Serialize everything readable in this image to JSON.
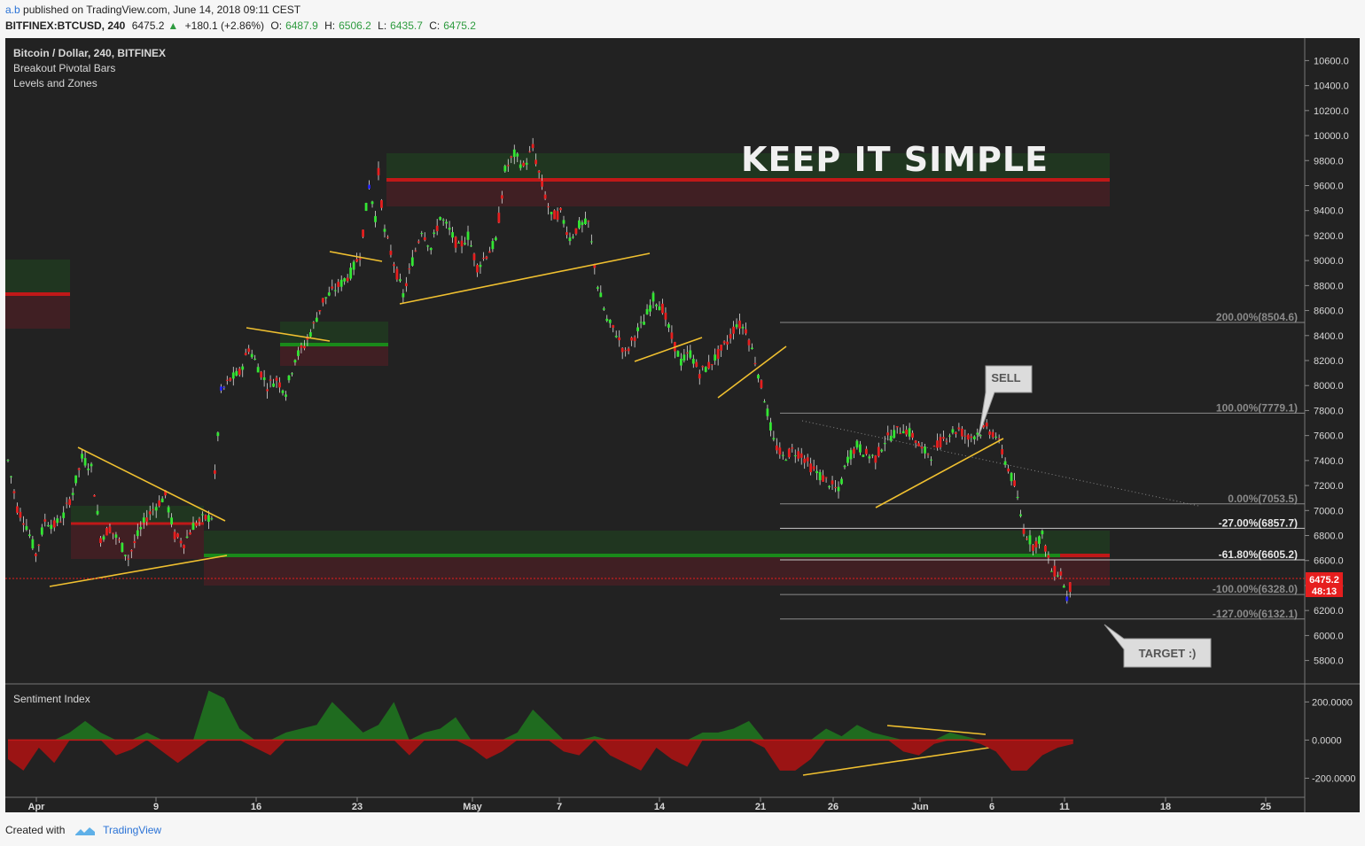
{
  "header": {
    "user": "a.b",
    "published": "published on TradingView.com, June 14, 2018 09:11 CEST",
    "symbol": "BITFINEX:BTCUSD, 240",
    "last": "6475.2",
    "change": "+180.1 (+2.86%)",
    "o_label": "O:",
    "o": "6487.9",
    "h_label": "H:",
    "h": "6506.2",
    "l_label": "L:",
    "l": "6435.7",
    "c_label": "C:",
    "c": "6475.2"
  },
  "legend": {
    "title": "Bitcoin / Dollar, 240, BITFINEX",
    "ind1": "Breakout Pivotal Bars",
    "ind2": "Levels and Zones"
  },
  "annotations": {
    "headline": "KEEP IT SIMPLE",
    "sell": "SELL",
    "target": "TARGET :)"
  },
  "price_tag": {
    "value": "6475.2",
    "countdown": "48:13"
  },
  "sentiment_label": "Sentiment Index",
  "footer": {
    "created": "Created with",
    "brand": "TradingView"
  },
  "colors": {
    "bull": "#33e633",
    "bear": "#e61e1e",
    "breakout": "#2222ff",
    "trend": "#f0c030",
    "bg": "#222222"
  },
  "chart_data": {
    "type": "candlestick",
    "price_axis": {
      "ticks": [
        5800,
        6000,
        6200,
        6400,
        6600,
        6800,
        7000,
        7200,
        7400,
        7600,
        7800,
        8000,
        8200,
        8400,
        8600,
        8800,
        9000,
        9200,
        9400,
        9600,
        9800,
        10000,
        10200,
        10400,
        10600
      ],
      "ylim": [
        5620,
        10780
      ]
    },
    "sentiment_axis": {
      "ticks": [
        -200,
        0,
        200
      ],
      "tick_labels": [
        "-200.0000",
        "0.0000",
        "200.0000"
      ],
      "ylim": [
        -300,
        290
      ]
    },
    "x_ticks": [
      "Apr",
      "9",
      "16",
      "23",
      "May",
      "7",
      "14",
      "21",
      "26",
      "Jun",
      "6",
      "11",
      "18",
      "25"
    ],
    "close_path": [
      [
        0,
        7400
      ],
      [
        3,
        7020
      ],
      [
        6,
        6880
      ],
      [
        9,
        6650
      ],
      [
        12,
        6920
      ],
      [
        15,
        6880
      ],
      [
        18,
        6960
      ],
      [
        21,
        7150
      ],
      [
        24,
        7420
      ],
      [
        27,
        7340
      ],
      [
        30,
        6780
      ],
      [
        33,
        6860
      ],
      [
        36,
        6750
      ],
      [
        39,
        6620
      ],
      [
        42,
        6800
      ],
      [
        45,
        6950
      ],
      [
        48,
        7040
      ],
      [
        51,
        7120
      ],
      [
        54,
        6800
      ],
      [
        57,
        6740
      ],
      [
        60,
        6880
      ],
      [
        63,
        6930
      ],
      [
        66,
        6950
      ],
      [
        69,
        7950
      ],
      [
        72,
        8050
      ],
      [
        75,
        8100
      ],
      [
        78,
        8300
      ],
      [
        81,
        8150
      ],
      [
        84,
        8000
      ],
      [
        87,
        8050
      ],
      [
        90,
        7950
      ],
      [
        93,
        8220
      ],
      [
        96,
        8320
      ],
      [
        99,
        8480
      ],
      [
        102,
        8680
      ],
      [
        105,
        8750
      ],
      [
        108,
        8820
      ],
      [
        111,
        8900
      ],
      [
        114,
        9050
      ],
      [
        117,
        9600
      ],
      [
        119,
        9350
      ],
      [
        120,
        9700
      ],
      [
        122,
        9230
      ],
      [
        125,
        8980
      ],
      [
        128,
        8720
      ],
      [
        131,
        9000
      ],
      [
        134,
        9250
      ],
      [
        137,
        9100
      ],
      [
        140,
        9350
      ],
      [
        143,
        9240
      ],
      [
        146,
        9100
      ],
      [
        149,
        9200
      ],
      [
        152,
        8950
      ],
      [
        155,
        9050
      ],
      [
        158,
        9150
      ],
      [
        161,
        9720
      ],
      [
        164,
        9850
      ],
      [
        167,
        9750
      ],
      [
        170,
        9900
      ],
      [
        173,
        9600
      ],
      [
        176,
        9350
      ],
      [
        179,
        9380
      ],
      [
        182,
        9180
      ],
      [
        185,
        9280
      ],
      [
        188,
        9300
      ],
      [
        191,
        8800
      ],
      [
        194,
        8520
      ],
      [
        197,
        8420
      ],
      [
        200,
        8250
      ],
      [
        203,
        8400
      ],
      [
        206,
        8510
      ],
      [
        209,
        8700
      ],
      [
        212,
        8620
      ],
      [
        215,
        8380
      ],
      [
        218,
        8190
      ],
      [
        221,
        8260
      ],
      [
        224,
        8100
      ],
      [
        227,
        8160
      ],
      [
        230,
        8250
      ],
      [
        233,
        8350
      ],
      [
        236,
        8500
      ],
      [
        239,
        8450
      ],
      [
        242,
        8200
      ],
      [
        245,
        7900
      ],
      [
        248,
        7550
      ],
      [
        251,
        7420
      ],
      [
        254,
        7480
      ],
      [
        257,
        7450
      ],
      [
        260,
        7350
      ],
      [
        263,
        7280
      ],
      [
        266,
        7220
      ],
      [
        269,
        7150
      ],
      [
        272,
        7420
      ],
      [
        275,
        7520
      ],
      [
        278,
        7450
      ],
      [
        281,
        7420
      ],
      [
        284,
        7560
      ],
      [
        287,
        7620
      ],
      [
        290,
        7660
      ],
      [
        293,
        7600
      ],
      [
        296,
        7480
      ],
      [
        299,
        7450
      ],
      [
        302,
        7550
      ],
      [
        305,
        7620
      ],
      [
        308,
        7650
      ],
      [
        311,
        7580
      ],
      [
        314,
        7620
      ],
      [
        317,
        7660
      ],
      [
        320,
        7600
      ],
      [
        323,
        7400
      ],
      [
        326,
        7200
      ],
      [
        329,
        6850
      ],
      [
        332,
        6720
      ],
      [
        335,
        6800
      ],
      [
        338,
        6520
      ],
      [
        341,
        6500
      ],
      [
        343,
        6300
      ],
      [
        345,
        6475
      ]
    ],
    "x_max": 420,
    "levels": {
      "fib": [
        {
          "label": "200.00%(8504.6)",
          "price": 8504.6
        },
        {
          "label": "100.00%(7779.1)",
          "price": 7779.1
        },
        {
          "label": "0.00%(7053.5)",
          "price": 7053.5
        },
        {
          "label": "-27.00%(6857.7)",
          "price": 6857.7
        },
        {
          "label": "-61.80%(6605.2)",
          "price": 6605.2
        },
        {
          "label": "-100.00%(6328.0)",
          "price": 6328.0
        },
        {
          "label": "-127.00%(6132.1)",
          "price": 6132.1
        }
      ],
      "current": 6475.2
    },
    "sentiment_path": [
      [
        0,
        -100
      ],
      [
        5,
        -160
      ],
      [
        10,
        -40
      ],
      [
        15,
        -120
      ],
      [
        20,
        40
      ],
      [
        25,
        100
      ],
      [
        30,
        40
      ],
      [
        35,
        -80
      ],
      [
        40,
        -50
      ],
      [
        45,
        40
      ],
      [
        50,
        -60
      ],
      [
        55,
        -120
      ],
      [
        60,
        -60
      ],
      [
        65,
        260
      ],
      [
        70,
        220
      ],
      [
        75,
        60
      ],
      [
        80,
        -40
      ],
      [
        85,
        -80
      ],
      [
        90,
        40
      ],
      [
        95,
        60
      ],
      [
        100,
        80
      ],
      [
        105,
        200
      ],
      [
        110,
        120
      ],
      [
        115,
        40
      ],
      [
        120,
        80
      ],
      [
        125,
        200
      ],
      [
        130,
        -80
      ],
      [
        135,
        40
      ],
      [
        140,
        60
      ],
      [
        145,
        120
      ],
      [
        150,
        -40
      ],
      [
        155,
        -100
      ],
      [
        160,
        -60
      ],
      [
        165,
        40
      ],
      [
        170,
        160
      ],
      [
        175,
        80
      ],
      [
        180,
        -60
      ],
      [
        185,
        -80
      ],
      [
        190,
        20
      ],
      [
        195,
        -80
      ],
      [
        200,
        -120
      ],
      [
        205,
        -160
      ],
      [
        210,
        -40
      ],
      [
        215,
        -100
      ],
      [
        220,
        -140
      ],
      [
        225,
        40
      ],
      [
        230,
        40
      ],
      [
        235,
        60
      ],
      [
        240,
        100
      ],
      [
        245,
        -40
      ],
      [
        250,
        -160
      ],
      [
        255,
        -160
      ],
      [
        260,
        -100
      ],
      [
        265,
        60
      ],
      [
        270,
        20
      ],
      [
        275,
        80
      ],
      [
        280,
        40
      ],
      [
        285,
        20
      ],
      [
        290,
        -60
      ],
      [
        295,
        -80
      ],
      [
        300,
        -20
      ],
      [
        305,
        40
      ],
      [
        310,
        20
      ],
      [
        315,
        -20
      ],
      [
        320,
        -60
      ],
      [
        325,
        -160
      ],
      [
        330,
        -160
      ],
      [
        335,
        -80
      ],
      [
        340,
        -40
      ],
      [
        345,
        -20
      ]
    ]
  }
}
